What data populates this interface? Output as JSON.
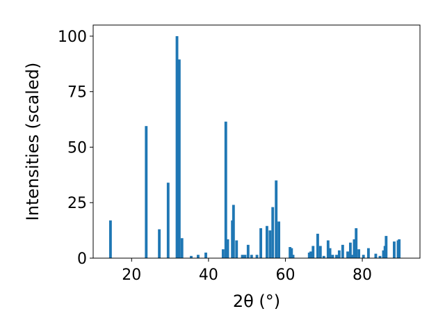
{
  "chart_data": {
    "type": "bar",
    "xlabel": "2θ (°)",
    "ylabel": "Intensities (scaled)",
    "xlim": [
      10,
      95
    ],
    "ylim": [
      0,
      105
    ],
    "xticks": [
      20,
      40,
      60,
      80
    ],
    "yticks": [
      0,
      25,
      50,
      75,
      100
    ],
    "grid": false,
    "bar_color": "#1f77b4",
    "bar_width": 0.7,
    "series": [
      {
        "x": [
          14.5,
          23.8,
          27.2,
          29.5,
          31.8,
          32.4,
          33.1,
          35.5,
          37.3,
          39.3,
          43.8,
          44.5,
          45.0,
          46.2,
          46.5,
          47.3,
          48.8,
          49.5,
          50.3,
          51.2,
          52.6,
          53.6,
          55.2,
          56.0,
          56.7,
          57.6,
          58.3,
          61.2,
          61.6,
          62.0,
          66.2,
          66.6,
          67.2,
          68.4,
          69.1,
          70.0,
          71.1,
          71.6,
          72.3,
          73.3,
          74.0,
          74.9,
          76.2,
          76.9,
          77.5,
          77.9,
          78.4,
          79.1,
          80.3,
          81.6,
          83.5,
          84.6,
          85.5,
          85.9,
          86.2,
          88.3,
          89.3,
          89.6
        ],
        "values": [
          17,
          59.5,
          13,
          34,
          100,
          89.5,
          9,
          1,
          1.5,
          2.5,
          4,
          61.5,
          8.5,
          17,
          24,
          8,
          1.5,
          1.5,
          6,
          1.5,
          1.5,
          13.5,
          14.5,
          12.5,
          23,
          35,
          16.5,
          5,
          4.5,
          1.5,
          2.5,
          3,
          5.5,
          11,
          5.5,
          1,
          8,
          4.5,
          1.5,
          1.5,
          3.5,
          6,
          3,
          7,
          1.5,
          8.5,
          13.5,
          4,
          1.5,
          4.5,
          2,
          1,
          3.5,
          5.5,
          10,
          7.5,
          8,
          8.5
        ]
      }
    ]
  }
}
